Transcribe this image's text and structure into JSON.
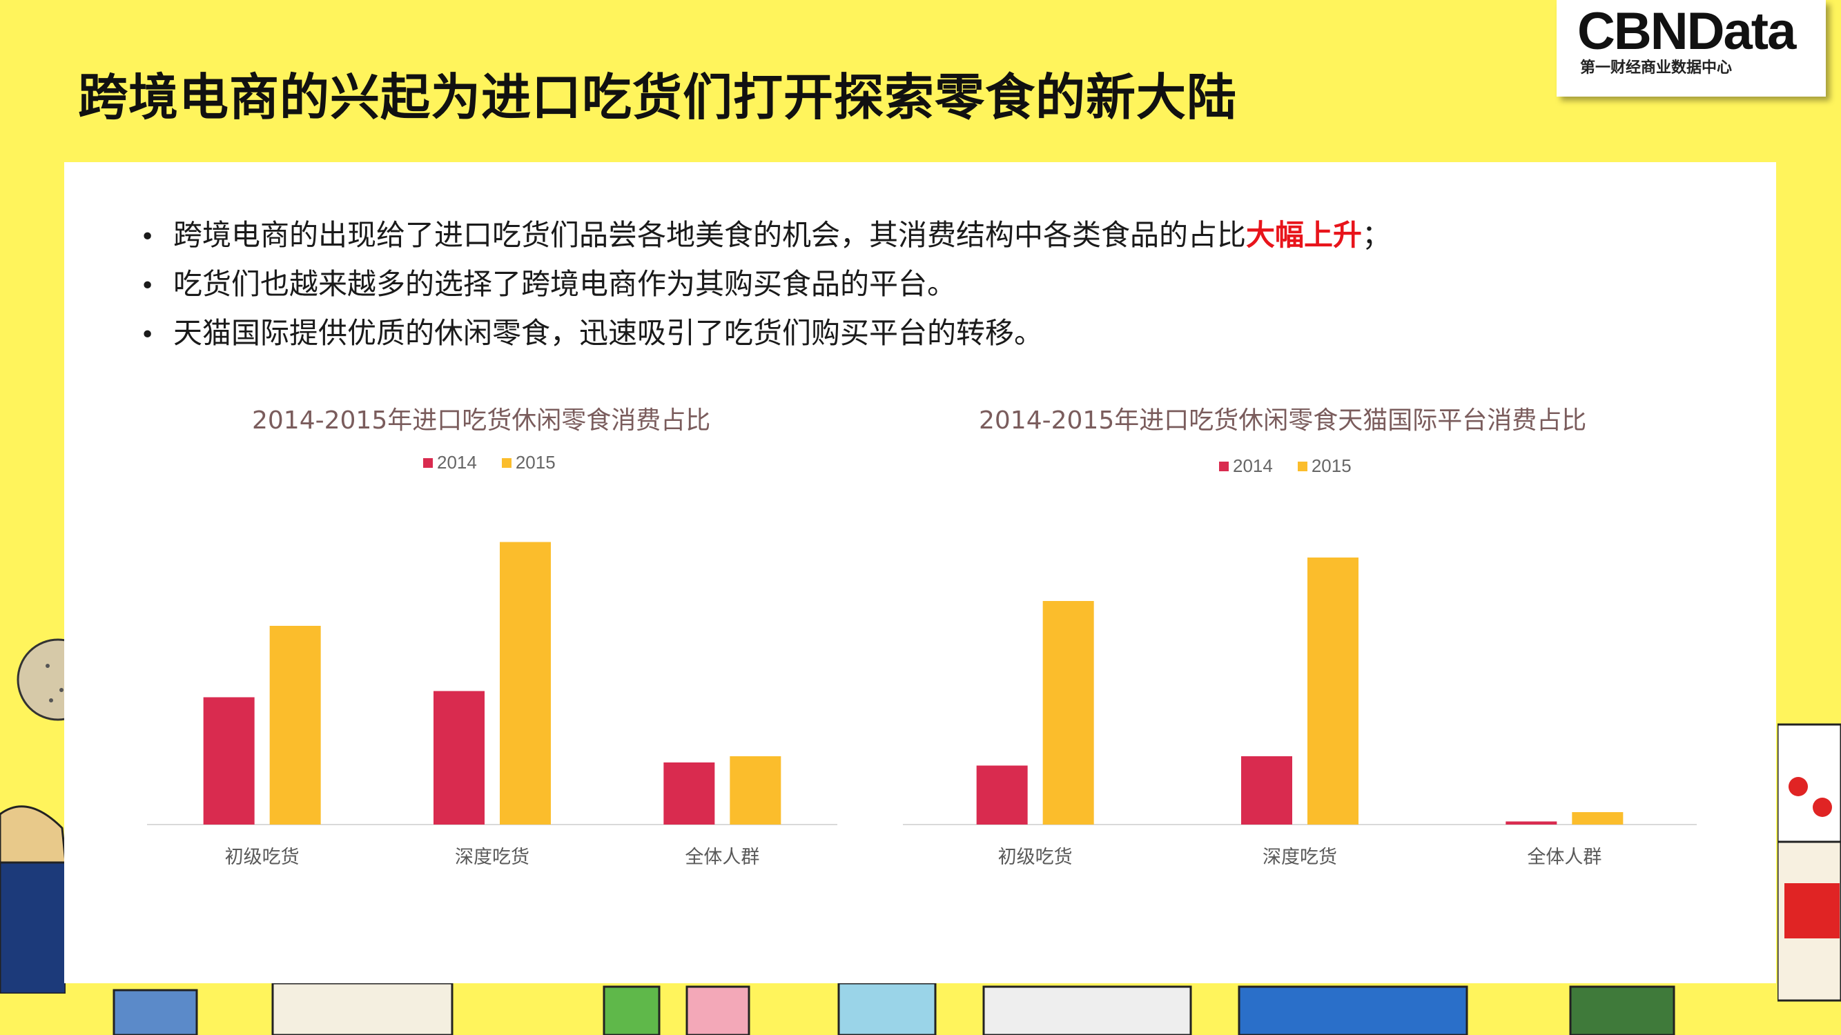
{
  "title": "跨境电商的兴起为进口吃货们打开探索零食的新大陆",
  "logo": {
    "main": "CBNData",
    "sub": "第一财经商业数据中心"
  },
  "bullets": [
    {
      "text": "跨境电商的出现给了进口吃货们品尝各地美食的机会，其消费结构中各类食品的占比",
      "highlight": "大幅上升",
      "tail": "；"
    },
    {
      "text": "吃货们也越来越多的选择了跨境电商作为其购买食品的平台。",
      "highlight": "",
      "tail": ""
    },
    {
      "text": "天猫国际提供优质的休闲零食，迅速吸引了吃货们购买平台的转移。",
      "highlight": "",
      "tail": ""
    }
  ],
  "colors": {
    "background": "#fff45c",
    "series_2014": "#d92b4f",
    "series_2015": "#fbbd2c",
    "highlight": "#e8141b",
    "title_text": "#7a5c5c"
  },
  "chart_data": [
    {
      "type": "bar",
      "title": "2014-2015年进口吃货休闲零食消费占比",
      "categories": [
        "初级吃货",
        "深度吃货",
        "全体人群"
      ],
      "series": [
        {
          "name": "2014",
          "values": [
            41,
            43,
            20
          ]
        },
        {
          "name": "2015",
          "values": [
            64,
            91,
            22
          ]
        }
      ],
      "ylim": [
        0,
        100
      ],
      "grid": false,
      "legend": "top-center"
    },
    {
      "type": "bar",
      "title": "2014-2015年进口吃货休闲零食天猫国际平台消费占比",
      "categories": [
        "初级吃货",
        "深度吃货",
        "全体人群"
      ],
      "series": [
        {
          "name": "2014",
          "values": [
            19,
            22,
            1
          ]
        },
        {
          "name": "2015",
          "values": [
            72,
            86,
            4
          ]
        }
      ],
      "ylim": [
        0,
        100
      ],
      "grid": false,
      "legend": "top-center"
    }
  ]
}
